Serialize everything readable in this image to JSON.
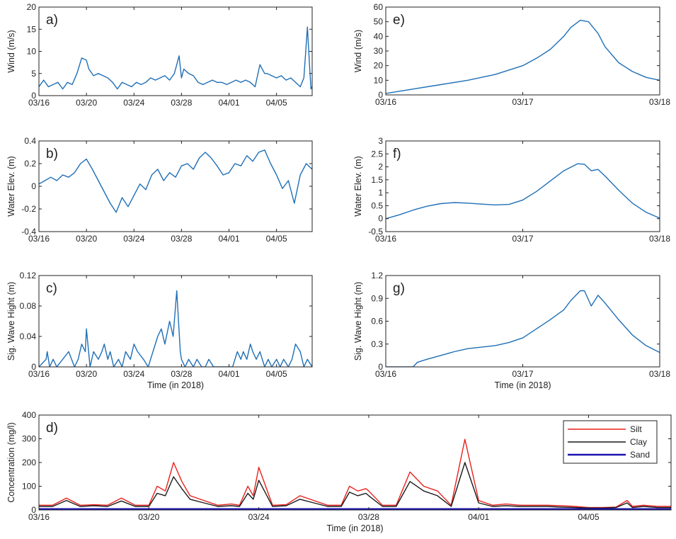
{
  "colors": {
    "series": "#1f6fb6",
    "silt": "#e8211c",
    "clay": "#1a1a1a",
    "sand": "#1b12b0",
    "axis": "#222222"
  },
  "chart_data": [
    {
      "id": "a",
      "type": "line",
      "panel_label": "a)",
      "ylabel": "Wind (m/s)",
      "xlabel": "",
      "xlim": [
        0,
        23
      ],
      "ylim": [
        0,
        20
      ],
      "yticks": [
        0,
        5,
        10,
        15,
        20
      ],
      "ytick_labels": [
        "0",
        "5",
        "10",
        "15",
        "20"
      ],
      "xticks": [
        0,
        4,
        8,
        12,
        16,
        20
      ],
      "xtick_labels": [
        "03/16",
        "03/20",
        "03/24",
        "03/28",
        "04/01",
        "04/05"
      ],
      "series": [
        {
          "name": "Wind",
          "color": "series",
          "x": [
            0,
            0.4,
            0.8,
            1.2,
            1.6,
            2,
            2.4,
            2.8,
            3.2,
            3.6,
            4,
            4.2,
            4.6,
            5,
            5.4,
            5.8,
            6.2,
            6.6,
            7,
            7.4,
            7.8,
            8.2,
            8.6,
            9,
            9.4,
            9.8,
            10.2,
            10.6,
            11,
            11.4,
            11.6,
            11.8,
            12,
            12.2,
            12.6,
            13,
            13.4,
            13.8,
            14.2,
            14.6,
            15,
            15.4,
            15.8,
            16.2,
            16.6,
            17,
            17.4,
            17.8,
            18.2,
            18.6,
            19,
            19.2,
            19.6,
            20,
            20.4,
            20.8,
            21.2,
            21.6,
            22,
            22.3,
            22.6,
            22.8,
            22.9,
            23
          ],
          "y": [
            2,
            3.5,
            2,
            2.5,
            3,
            1.5,
            3,
            2.5,
            5,
            8.5,
            8,
            6,
            4.5,
            5,
            4.5,
            4,
            3,
            1.5,
            3,
            2.5,
            2,
            3,
            2.5,
            3,
            4,
            3.5,
            4,
            4.5,
            3.5,
            5,
            7,
            9,
            4,
            6,
            5,
            4.5,
            3,
            2.5,
            3,
            3.5,
            3,
            3,
            2.5,
            3,
            3.5,
            3,
            3.5,
            3,
            2,
            7,
            5,
            5,
            4.5,
            4,
            4.5,
            3.5,
            4,
            3,
            2,
            4,
            15.5,
            6,
            1.5,
            2
          ]
        }
      ]
    },
    {
      "id": "b",
      "type": "line",
      "panel_label": "b)",
      "ylabel": "Water Elev. (m)",
      "xlabel": "",
      "xlim": [
        0,
        23
      ],
      "ylim": [
        -0.4,
        0.4
      ],
      "yticks": [
        -0.4,
        -0.2,
        0,
        0.2,
        0.4
      ],
      "ytick_labels": [
        "-0.4",
        "-0.2",
        "0",
        "0.2",
        "0.4"
      ],
      "xticks": [
        0,
        4,
        8,
        12,
        16,
        20
      ],
      "xtick_labels": [
        "03/16",
        "03/20",
        "03/24",
        "03/28",
        "04/01",
        "04/05"
      ],
      "series": [
        {
          "name": "Water Elevation",
          "color": "series",
          "x": [
            0,
            0.5,
            1,
            1.5,
            2,
            2.5,
            3,
            3.5,
            4,
            4.5,
            5,
            5.5,
            6,
            6.5,
            7,
            7.5,
            8,
            8.5,
            9,
            9.5,
            10,
            10.5,
            11,
            11.5,
            12,
            12.5,
            13,
            13.5,
            14,
            14.5,
            15,
            15.5,
            16,
            16.5,
            17,
            17.5,
            18,
            18.5,
            19,
            19.5,
            20,
            20.5,
            21,
            21.5,
            22,
            22.5,
            23
          ],
          "y": [
            0.02,
            0.05,
            0.08,
            0.05,
            0.1,
            0.08,
            0.12,
            0.2,
            0.24,
            0.15,
            0.05,
            -0.05,
            -0.15,
            -0.23,
            -0.1,
            -0.18,
            -0.08,
            0.02,
            -0.03,
            0.1,
            0.15,
            0.05,
            0.12,
            0.08,
            0.18,
            0.2,
            0.15,
            0.25,
            0.3,
            0.25,
            0.18,
            0.1,
            0.12,
            0.2,
            0.18,
            0.27,
            0.22,
            0.3,
            0.32,
            0.2,
            0.1,
            -0.02,
            0.05,
            -0.15,
            0.1,
            0.2,
            0.15
          ]
        }
      ]
    },
    {
      "id": "c",
      "type": "line",
      "panel_label": "c)",
      "ylabel": "Sig. Wave Hight (m)",
      "xlabel": "Time (in 2018)",
      "xlim": [
        0,
        23
      ],
      "ylim": [
        0,
        0.12
      ],
      "yticks": [
        0,
        0.04,
        0.08,
        0.12
      ],
      "ytick_labels": [
        "0",
        "0.04",
        "0.08",
        "0.12"
      ],
      "xticks": [
        0,
        4,
        8,
        12,
        16,
        20
      ],
      "xtick_labels": [
        "03/16",
        "03/20",
        "03/24",
        "03/28",
        "04/01",
        "04/05"
      ],
      "series": [
        {
          "name": "Sig. Wave Height",
          "color": "series",
          "x": [
            0,
            0.6,
            0.7,
            0.9,
            1.2,
            1.5,
            2,
            2.5,
            3,
            3.3,
            3.6,
            3.9,
            4,
            4.3,
            4.6,
            5,
            5.3,
            5.5,
            5.8,
            6,
            6.3,
            6.7,
            7,
            7.3,
            7.7,
            8,
            8.3,
            8.8,
            9.2,
            9.6,
            10,
            10.3,
            10.6,
            11,
            11.3,
            11.6,
            11.9,
            12,
            12.3,
            12.6,
            13,
            13.3,
            13.7,
            14,
            14.3,
            14.7,
            15,
            15.3,
            15.7,
            16,
            16.3,
            16.7,
            17,
            17.2,
            17.5,
            17.8,
            18,
            18.3,
            18.6,
            19,
            19.3,
            19.6,
            20,
            20.3,
            20.6,
            21,
            21.3,
            21.6,
            22,
            22.3,
            22.6,
            23
          ],
          "y": [
            0,
            0.01,
            0.02,
            0,
            0.01,
            0,
            0.01,
            0.02,
            0,
            0.01,
            0.03,
            0.02,
            0.05,
            0,
            0.02,
            0.01,
            0.02,
            0.03,
            0.01,
            0.02,
            0,
            0.01,
            0,
            0.02,
            0.01,
            0.03,
            0.02,
            0.01,
            0,
            0.02,
            0.04,
            0.05,
            0.03,
            0.06,
            0.04,
            0.1,
            0.02,
            0.01,
            0,
            0.01,
            0,
            0.01,
            0,
            0,
            0.01,
            0,
            0,
            0,
            0,
            0,
            0,
            0.02,
            0.01,
            0.02,
            0.01,
            0.03,
            0.02,
            0.01,
            0.02,
            0,
            0.01,
            0,
            0.01,
            0,
            0.01,
            0,
            0.01,
            0.03,
            0.02,
            0,
            0.01,
            0
          ]
        }
      ]
    },
    {
      "id": "e",
      "type": "line",
      "panel_label": "e)",
      "ylabel": "Wind (m/s)",
      "xlabel": "",
      "xlim": [
        0,
        2
      ],
      "ylim": [
        0,
        60
      ],
      "yticks": [
        0,
        10,
        20,
        30,
        40,
        50,
        60
      ],
      "ytick_labels": [
        "0",
        "10",
        "20",
        "30",
        "40",
        "50",
        "60"
      ],
      "xticks": [
        0,
        1,
        2
      ],
      "xtick_labels": [
        "03/16",
        "03/17",
        "03/18"
      ],
      "series": [
        {
          "name": "Wind",
          "color": "series",
          "x": [
            0,
            0.2,
            0.4,
            0.6,
            0.8,
            1,
            1.1,
            1.2,
            1.3,
            1.35,
            1.42,
            1.48,
            1.55,
            1.6,
            1.7,
            1.8,
            1.9,
            2
          ],
          "y": [
            1,
            4,
            7,
            10,
            14,
            20,
            25,
            31,
            40,
            46,
            51,
            50,
            42,
            33,
            22,
            16,
            12,
            10
          ]
        }
      ]
    },
    {
      "id": "f",
      "type": "line",
      "panel_label": "f)",
      "ylabel": "Water Elev. (m)",
      "xlabel": "",
      "xlim": [
        0,
        2
      ],
      "ylim": [
        -0.5,
        3
      ],
      "yticks": [
        -0.5,
        0,
        0.5,
        1,
        1.5,
        2,
        2.5,
        3
      ],
      "ytick_labels": [
        "-0.5",
        "0",
        "0.5",
        "1",
        "1.5",
        "2",
        "2.5",
        "3"
      ],
      "xticks": [
        0,
        1,
        2
      ],
      "xtick_labels": [
        "03/16",
        "03/17",
        "03/18"
      ],
      "series": [
        {
          "name": "Water Elevation",
          "color": "series",
          "x": [
            0,
            0.1,
            0.2,
            0.3,
            0.4,
            0.5,
            0.6,
            0.7,
            0.8,
            0.9,
            1,
            1.1,
            1.2,
            1.3,
            1.4,
            1.45,
            1.5,
            1.55,
            1.6,
            1.7,
            1.8,
            1.9,
            2
          ],
          "y": [
            0,
            0.15,
            0.33,
            0.48,
            0.58,
            0.62,
            0.6,
            0.56,
            0.53,
            0.55,
            0.72,
            1.05,
            1.45,
            1.85,
            2.12,
            2.1,
            1.85,
            1.9,
            1.65,
            1.1,
            0.6,
            0.25,
            0.02
          ]
        }
      ]
    },
    {
      "id": "g",
      "type": "line",
      "panel_label": "g)",
      "ylabel": "Sig. Wave Hight (m)",
      "xlabel": "Time (in 2018)",
      "xlim": [
        0,
        2
      ],
      "ylim": [
        0,
        1.2
      ],
      "yticks": [
        0,
        0.3,
        0.6,
        0.9,
        1.2
      ],
      "ytick_labels": [
        "0",
        "0.3",
        "0.6",
        "0.9",
        "1.2"
      ],
      "xticks": [
        0,
        1,
        2
      ],
      "xtick_labels": [
        "03/16",
        "03/17",
        "03/18"
      ],
      "series": [
        {
          "name": "Sig. Wave Height",
          "color": "series",
          "x": [
            0,
            0.1,
            0.2,
            0.23,
            0.3,
            0.4,
            0.5,
            0.6,
            0.7,
            0.8,
            0.9,
            1,
            1.1,
            1.2,
            1.3,
            1.35,
            1.42,
            1.45,
            1.5,
            1.55,
            1.6,
            1.7,
            1.8,
            1.9,
            2
          ],
          "y": [
            0,
            0,
            0,
            0.06,
            0.1,
            0.15,
            0.2,
            0.24,
            0.26,
            0.28,
            0.32,
            0.38,
            0.5,
            0.62,
            0.75,
            0.87,
            1,
            1,
            0.8,
            0.94,
            0.84,
            0.62,
            0.42,
            0.28,
            0.19
          ]
        }
      ]
    },
    {
      "id": "d",
      "type": "line",
      "panel_label": "d)",
      "ylabel": "Concentration (mg/l)",
      "xlabel": "Time (in 2018)",
      "xlim": [
        0,
        23
      ],
      "ylim": [
        0,
        400
      ],
      "yticks": [
        0,
        100,
        200,
        300,
        400
      ],
      "ytick_labels": [
        "0",
        "100",
        "200",
        "300",
        "400"
      ],
      "xticks": [
        0,
        4,
        8,
        12,
        16,
        20
      ],
      "xtick_labels": [
        "03/16",
        "03/20",
        "03/24",
        "03/28",
        "04/01",
        "04/05"
      ],
      "legend": {
        "position": "top-right",
        "entries": [
          "Silt",
          "Clay",
          "Sand"
        ]
      },
      "x": [
        0,
        0.5,
        1,
        1.5,
        2,
        2.5,
        3,
        3.5,
        4,
        4.3,
        4.6,
        4.9,
        5.2,
        5.5,
        6,
        6.5,
        7,
        7.3,
        7.6,
        7.8,
        8,
        8.5,
        9,
        9.5,
        10,
        10.5,
        11,
        11.3,
        11.6,
        11.9,
        12,
        12.5,
        13,
        13.5,
        14,
        14.5,
        15,
        15.5,
        16,
        16.5,
        17,
        17.5,
        18,
        18.5,
        19,
        19.5,
        20,
        20.5,
        21,
        21.4,
        21.6,
        22,
        22.5,
        23
      ],
      "series": [
        {
          "name": "Silt",
          "color": "silt",
          "y": [
            20,
            20,
            50,
            20,
            22,
            20,
            50,
            20,
            20,
            100,
            80,
            200,
            120,
            60,
            40,
            20,
            25,
            20,
            100,
            60,
            180,
            20,
            22,
            60,
            40,
            20,
            20,
            100,
            80,
            90,
            80,
            20,
            20,
            160,
            100,
            80,
            20,
            298,
            40,
            20,
            25,
            20,
            20,
            20,
            18,
            15,
            10,
            10,
            12,
            40,
            15,
            20,
            15,
            15
          ]
        },
        {
          "name": "Clay",
          "color": "clay",
          "y": [
            15,
            15,
            40,
            15,
            18,
            15,
            38,
            15,
            15,
            70,
            60,
            140,
            90,
            45,
            30,
            15,
            18,
            15,
            70,
            45,
            125,
            15,
            18,
            45,
            30,
            15,
            15,
            75,
            60,
            70,
            60,
            15,
            15,
            120,
            80,
            60,
            15,
            200,
            30,
            15,
            18,
            15,
            15,
            15,
            12,
            10,
            8,
            8,
            10,
            30,
            10,
            15,
            10,
            10
          ]
        },
        {
          "name": "Sand",
          "color": "sand",
          "y": [
            3,
            3,
            3,
            3,
            3,
            3,
            3,
            3,
            3,
            3,
            3,
            3,
            3,
            3,
            3,
            3,
            3,
            3,
            3,
            3,
            3,
            3,
            3,
            3,
            3,
            3,
            3,
            3,
            3,
            3,
            3,
            3,
            3,
            3,
            3,
            3,
            3,
            3,
            3,
            3,
            3,
            3,
            3,
            3,
            3,
            3,
            3,
            3,
            3,
            3,
            3,
            3,
            3,
            3
          ]
        }
      ]
    }
  ]
}
